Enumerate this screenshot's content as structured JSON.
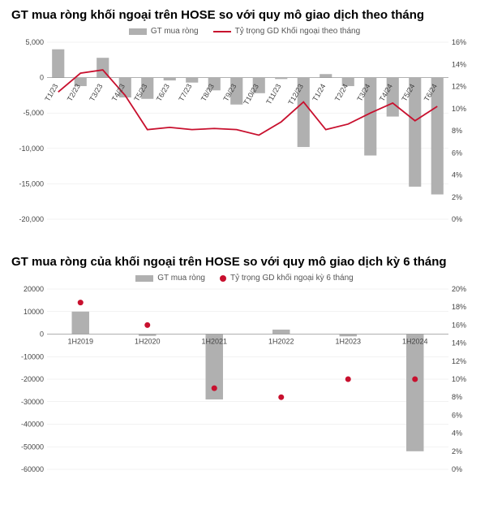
{
  "chart1": {
    "title": "GT mua ròng khối ngoại trên HOSE so với quy mô giao dịch theo tháng",
    "legend_bar": "GT mua ròng",
    "legend_line": "Tỷ trọng GD Khối ngoại theo tháng",
    "type": "bar+line",
    "bar_color": "#b0b0b0",
    "line_color": "#c8102e",
    "grid_color": "#e6e6e6",
    "background_color": "#ffffff",
    "label_fontsize": 9,
    "title_fontsize": 15,
    "categories": [
      "T1/23",
      "T2/23",
      "T3/23",
      "T4/23",
      "T5/23",
      "T6/23",
      "T7/23",
      "T8/23",
      "T9/23",
      "T10/23",
      "T11/23",
      "T12/23",
      "T1/24",
      "T2/24",
      "T3/24",
      "T4/24",
      "T5/24",
      "T6/24"
    ],
    "bar_values": [
      4000,
      -1200,
      2800,
      -2800,
      -3000,
      -400,
      -700,
      -1800,
      -3800,
      -2200,
      -200,
      -9800,
      500,
      -1200,
      -11000,
      -5500,
      -15400,
      -16500
    ],
    "line_values": [
      11.5,
      13.2,
      13.5,
      11.2,
      8.1,
      8.3,
      8.1,
      8.2,
      8.1,
      7.6,
      8.8,
      10.6,
      8.1,
      8.6,
      9.6,
      10.5,
      8.9,
      10.2
    ],
    "y_left": {
      "min": -20000,
      "max": 5000,
      "ticks": [
        -20000,
        -15000,
        -10000,
        -5000,
        0,
        5000
      ],
      "labels": [
        "-20,000",
        "-15,000",
        "-10,000",
        "-5,000",
        "0",
        "5,000"
      ]
    },
    "y_right": {
      "min": 0,
      "max": 16,
      "ticks": [
        0,
        2,
        4,
        6,
        8,
        10,
        12,
        14,
        16
      ],
      "labels": [
        "0%",
        "2%",
        "4%",
        "6%",
        "8%",
        "10%",
        "12%",
        "14%",
        "16%"
      ]
    }
  },
  "chart2": {
    "title": "GT mua ròng của khối ngoại trên HOSE so với quy mô giao dịch kỳ 6 tháng",
    "legend_bar": "GT mua ròng",
    "legend_dot": "Tỷ trọng GD khối ngoại kỳ 6 tháng",
    "type": "bar+scatter",
    "bar_color": "#b0b0b0",
    "dot_color": "#c8102e",
    "grid_color": "#e6e6e6",
    "background_color": "#ffffff",
    "label_fontsize": 9,
    "title_fontsize": 15,
    "categories": [
      "1H2019",
      "1H2020",
      "1H2021",
      "1H2022",
      "1H2023",
      "1H2024"
    ],
    "bar_values": [
      10000,
      -800,
      -29000,
      2000,
      -1000,
      -52000
    ],
    "dot_values": [
      18.5,
      16.0,
      9.0,
      8.0,
      10.0,
      10.0
    ],
    "y_left": {
      "min": -60000,
      "max": 20000,
      "ticks": [
        -60000,
        -50000,
        -40000,
        -30000,
        -20000,
        -10000,
        0,
        10000,
        20000
      ],
      "labels": [
        "-60000",
        "-50000",
        "-40000",
        "-30000",
        "-20000",
        "-10000",
        "0",
        "10000",
        "20000"
      ]
    },
    "y_right": {
      "min": 0,
      "max": 20,
      "ticks": [
        0,
        2,
        4,
        6,
        8,
        10,
        12,
        14,
        16,
        18,
        20
      ],
      "labels": [
        "0%",
        "2%",
        "4%",
        "6%",
        "8%",
        "10%",
        "12%",
        "14%",
        "16%",
        "18%",
        "20%"
      ]
    }
  }
}
